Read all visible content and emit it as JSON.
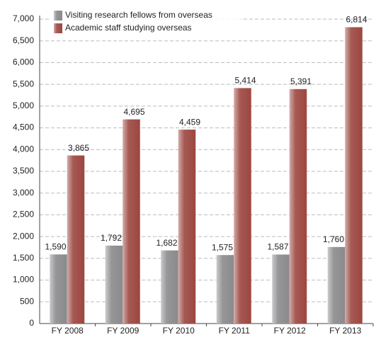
{
  "chart_data": {
    "type": "bar",
    "categories": [
      "FY 2008",
      "FY 2009",
      "FY 2010",
      "FY 2011",
      "FY 2012",
      "FY 2013"
    ],
    "series": [
      {
        "name": "Visiting research fellows from overseas",
        "color": "#8a8a8c",
        "values": [
          1590,
          1792,
          1682,
          1575,
          1587,
          1760
        ],
        "value_labels": [
          "1,590",
          "1,792",
          "1,682",
          "1,575",
          "1,587",
          "1,760"
        ]
      },
      {
        "name": "Academic staff studying overseas",
        "color": "#9c4640",
        "values": [
          3865,
          4695,
          4459,
          5414,
          5391,
          6814
        ],
        "value_labels": [
          "3,865",
          "4,695",
          "4,459",
          "5,414",
          "5,391",
          "6,814"
        ]
      }
    ],
    "ylim": [
      0,
      7000
    ],
    "yticks": [
      0,
      500,
      {
        "value": 1000,
        "label": "1,000"
      },
      {
        "value": 1500,
        "label": "1,500"
      },
      {
        "value": 2000,
        "label": "2,000"
      },
      {
        "value": 2500,
        "label": "2,500"
      },
      {
        "value": 3000,
        "label": "3,000"
      },
      {
        "value": 3500,
        "label": "3,500"
      },
      {
        "value": 4000,
        "label": "4,000"
      },
      {
        "value": 4500,
        "label": "4,500"
      },
      {
        "value": 5000,
        "label": "5,000"
      },
      {
        "value": 5500,
        "label": "5,500"
      },
      {
        "value": 6000,
        "label": "6,000"
      },
      {
        "value": 6500,
        "label": "6,500"
      },
      {
        "value": 7000,
        "label": "7,000"
      }
    ],
    "grid": true,
    "legend": "top-left"
  }
}
